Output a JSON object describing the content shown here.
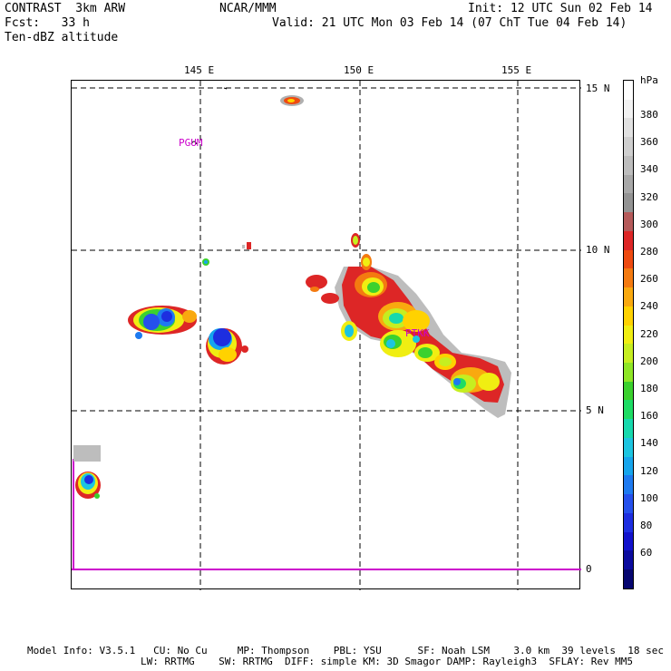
{
  "header": {
    "model": "CONTRAST  3km ARW",
    "org": "NCAR/MMM",
    "init": "Init: 12 UTC Sun 02 Feb 14",
    "fcst": "Fcst:   33 h",
    "valid": "Valid: 21 UTC Mon 03 Feb 14 (07 ChT Tue 04 Feb 14)",
    "field": "Ten-dBZ altitude"
  },
  "map": {
    "lon_labels": [
      "145 E",
      "150 E",
      "155 E"
    ],
    "lat_labels": [
      "15 N",
      "10 N",
      "5 N",
      "0"
    ],
    "stations": [
      "PGUM",
      "PTKK"
    ]
  },
  "colorbar": {
    "unit": "hPa",
    "labels": [
      "380",
      "360",
      "340",
      "320",
      "300",
      "280",
      "260",
      "240",
      "220",
      "200",
      "180",
      "160",
      "140",
      "120",
      "100",
      "80",
      "60"
    ],
    "colors": [
      "#ffffff",
      "#f2f2f2",
      "#e1e1e1",
      "#cfcfcf",
      "#bdbdbd",
      "#a8a8a8",
      "#939393",
      "#b55a5a",
      "#dd2626",
      "#ee4a10",
      "#f47a10",
      "#f9a90f",
      "#ffd200",
      "#f0ee12",
      "#c6ee20",
      "#8ee626",
      "#3bd12e",
      "#1ddc64",
      "#16d9ad",
      "#1cc5e0",
      "#16a5ec",
      "#1e7af0",
      "#2550ec",
      "#1d2ee0",
      "#1212cc",
      "#0b0b9e",
      "#060670"
    ]
  },
  "footer": {
    "line1": "Model Info: V3.5.1   CU: No Cu     MP: Thompson    PBL: YSU      SF: Noah LSM    3.0 km  39 levels  18 sec",
    "line2": "LW: RRTMG    SW: RRTMG  DIFF: simple KM: 3D Smagor DAMP: Rayleigh3  SFLAY: Rev MM5"
  }
}
